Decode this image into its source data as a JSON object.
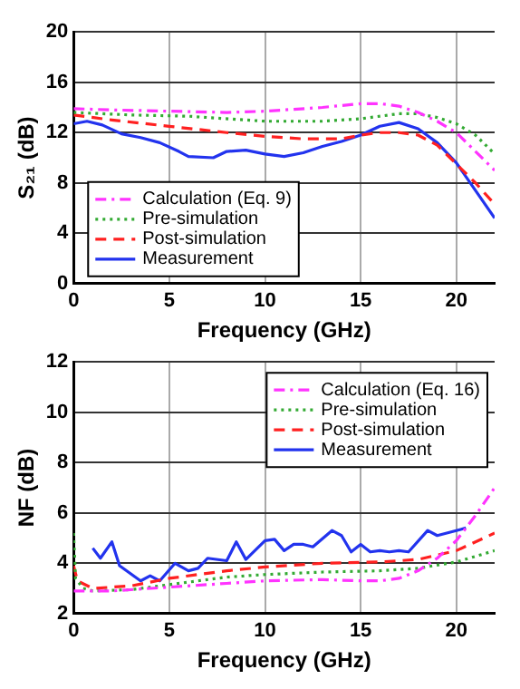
{
  "chart_data": [
    {
      "type": "line",
      "xlabel": "Frequency (GHz)",
      "ylabel": "S₂₁ (dB)",
      "xlim": [
        0,
        22
      ],
      "xticks": [
        0,
        5,
        10,
        15,
        20
      ],
      "ylim": [
        0,
        20
      ],
      "yticks": [
        0,
        4,
        8,
        12,
        16,
        20
      ],
      "grid": true,
      "legend": "bottom left",
      "marker": "none",
      "series": [
        {
          "name": "Calculation (Eq. 9)",
          "color": "#ff33ff",
          "line_style": "dashdot",
          "x": [
            0,
            2,
            5,
            8,
            10,
            13,
            15,
            16,
            17,
            18,
            19,
            20,
            21,
            22
          ],
          "values": [
            13.9,
            13.8,
            13.7,
            13.6,
            13.7,
            14.0,
            14.3,
            14.3,
            14.1,
            13.6,
            12.9,
            12.0,
            10.5,
            9.0
          ]
        },
        {
          "name": "Pre-simulation",
          "color": "#33aa33",
          "line_style": "dotted",
          "x": [
            0,
            3,
            6,
            10,
            13,
            15,
            17,
            18,
            19,
            20,
            21,
            22
          ],
          "values": [
            13.6,
            13.4,
            13.3,
            12.9,
            12.9,
            13.1,
            13.5,
            13.5,
            13.2,
            12.7,
            11.8,
            10.3
          ]
        },
        {
          "name": "Post-simulation",
          "color": "#ff2020",
          "line_style": "dashed",
          "x": [
            0,
            2,
            5,
            8,
            10,
            12,
            14,
            15,
            16,
            17,
            18,
            19,
            20,
            21,
            22
          ],
          "values": [
            13.4,
            13.0,
            12.5,
            12.0,
            11.7,
            11.5,
            11.5,
            11.8,
            12.0,
            12.0,
            11.8,
            11.0,
            9.5,
            8.0,
            6.3
          ]
        },
        {
          "name": "Measurement",
          "color": "#2233ee",
          "line_style": "solid",
          "x": [
            0,
            0.7,
            1.5,
            2.5,
            3.5,
            4.5,
            5.5,
            6,
            7.3,
            8,
            9,
            10,
            11,
            12,
            13,
            14,
            15,
            16,
            17,
            18,
            19,
            20,
            21,
            22
          ],
          "values": [
            12.7,
            12.9,
            12.6,
            11.9,
            11.6,
            11.2,
            10.5,
            10.1,
            10.0,
            10.5,
            10.6,
            10.3,
            10.1,
            10.4,
            10.9,
            11.3,
            11.8,
            12.5,
            12.8,
            12.3,
            11.2,
            9.6,
            7.4,
            5.2
          ]
        }
      ]
    },
    {
      "type": "line",
      "xlabel": "Frequency (GHz)",
      "ylabel": "NF (dB)",
      "xlim": [
        0,
        22
      ],
      "xticks": [
        0,
        5,
        10,
        15,
        20
      ],
      "ylim": [
        2,
        12
      ],
      "yticks": [
        2,
        4,
        6,
        8,
        10,
        12
      ],
      "grid": true,
      "legend": "top right",
      "marker": "none",
      "series": [
        {
          "name": "Calculation (Eq. 16)",
          "color": "#ff33ff",
          "line_style": "dashdot",
          "x": [
            0,
            2,
            5,
            8,
            10,
            13,
            15,
            16,
            17,
            18,
            19,
            20,
            21,
            22
          ],
          "values": [
            2.9,
            2.9,
            3.05,
            3.2,
            3.3,
            3.35,
            3.3,
            3.3,
            3.4,
            3.7,
            4.2,
            4.9,
            5.9,
            7.0
          ]
        },
        {
          "name": "Pre-simulation",
          "color": "#33aa33",
          "line_style": "dotted",
          "x": [
            0,
            0.1,
            0.5,
            1,
            3,
            5,
            8,
            10,
            13,
            16,
            18,
            20,
            22
          ],
          "values": [
            5.2,
            3.4,
            3.0,
            2.9,
            2.95,
            3.15,
            3.45,
            3.55,
            3.65,
            3.7,
            3.8,
            4.05,
            4.5
          ]
        },
        {
          "name": "Post-simulation",
          "color": "#ff2020",
          "line_style": "dashed",
          "x": [
            0,
            0.2,
            1,
            3,
            5,
            8,
            10,
            13,
            16,
            18,
            20,
            22
          ],
          "values": [
            3.9,
            3.3,
            3.0,
            3.1,
            3.4,
            3.7,
            3.85,
            4.0,
            4.05,
            4.15,
            4.5,
            5.2
          ]
        },
        {
          "name": "Measurement",
          "color": "#2233ee",
          "line_style": "solid",
          "x": [
            1,
            1.4,
            2,
            2.4,
            3.5,
            4,
            4.5,
            5.3,
            6,
            6.5,
            7,
            8,
            8.5,
            9,
            10,
            10.5,
            11,
            11.5,
            12,
            12.5,
            13.5,
            14,
            14.5,
            15,
            15.5,
            16,
            16.5,
            17,
            17.5,
            18.5,
            19,
            20,
            20.5
          ],
          "values": [
            4.6,
            4.2,
            4.85,
            3.9,
            3.3,
            3.5,
            3.3,
            4.0,
            3.7,
            3.8,
            4.2,
            4.1,
            4.85,
            4.15,
            4.9,
            4.95,
            4.5,
            4.75,
            4.75,
            4.65,
            5.3,
            5.1,
            4.45,
            4.75,
            4.45,
            4.5,
            4.45,
            4.5,
            4.45,
            5.3,
            5.1,
            5.3,
            5.4
          ]
        }
      ]
    }
  ]
}
